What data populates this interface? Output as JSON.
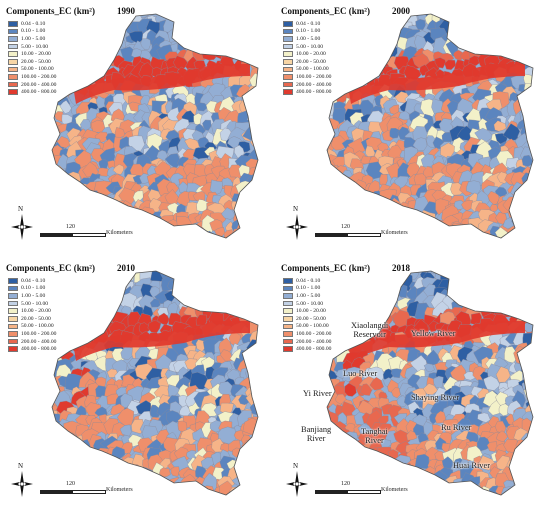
{
  "legend_classes": [
    {
      "label": "0.04 - 0.10",
      "color": "#2e5fa3"
    },
    {
      "label": "0.10 - 1.00",
      "color": "#5b85bf"
    },
    {
      "label": "1.00 - 5.00",
      "color": "#93aed4"
    },
    {
      "label": "5.00 - 10.00",
      "color": "#c3d2e6"
    },
    {
      "label": "10.00 - 20.00",
      "color": "#f3f1c9"
    },
    {
      "label": "20.00 - 50.00",
      "color": "#f8d6a6"
    },
    {
      "label": "50.00 - 100.00",
      "color": "#f6b488"
    },
    {
      "label": "100.00 - 200.00",
      "color": "#ef8f6b"
    },
    {
      "label": "200.00 - 400.00",
      "color": "#e8684f"
    },
    {
      "label": "400.00 - 800.00",
      "color": "#e03a2e"
    }
  ],
  "panels": [
    {
      "title": "Components_EC (km²)",
      "year": "1990",
      "scale_number": "120",
      "scale_unit": "Kilometers",
      "north_label": "N"
    },
    {
      "title": "Components_EC (km²)",
      "year": "2000",
      "scale_number": "120",
      "scale_unit": "Kilometers",
      "north_label": "N"
    },
    {
      "title": "Components_EC (km²)",
      "year": "2010",
      "scale_number": "120",
      "scale_unit": "Kilometers",
      "north_label": "N"
    },
    {
      "title": "Components_EC (km²)",
      "year": "2018",
      "scale_number": "120",
      "scale_unit": "Kilometers",
      "north_label": "N"
    }
  ],
  "river_labels": {
    "xiaolangdi": "Xiaolangdi Reservoir",
    "yellow": "Yellow River",
    "luo": "Luo River",
    "yi": "Yi River",
    "shaying": "Shaying River",
    "ru": "Ru River",
    "banjiang": "Banjiang River",
    "tanghai": "Tanghai River",
    "huai": "Huai River"
  }
}
